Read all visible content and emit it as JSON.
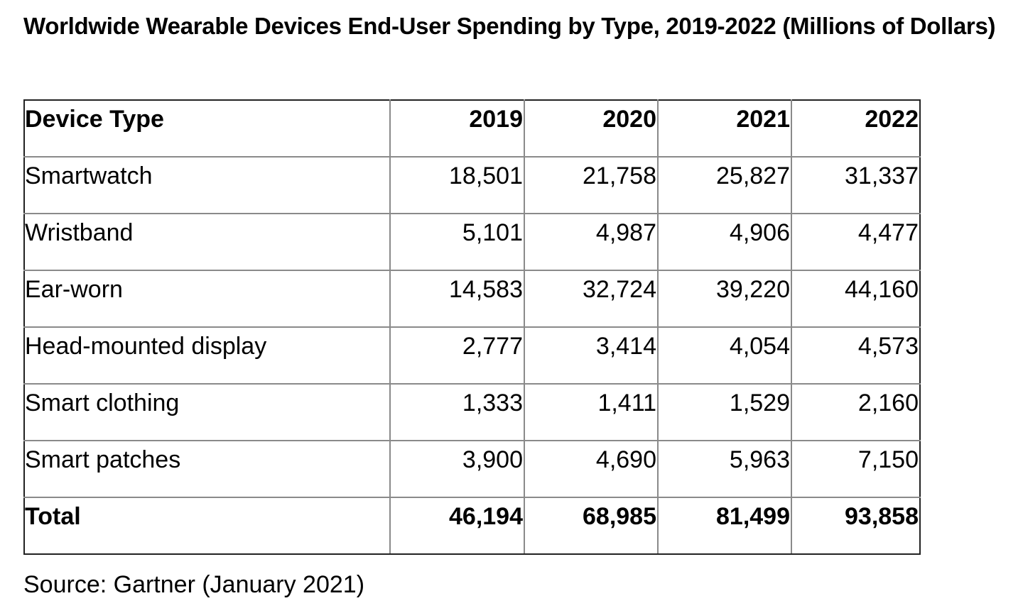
{
  "title": "Worldwide Wearable Devices End-User Spending by Type, 2019-2022 (Millions of Dollars)",
  "table": {
    "headers": [
      "Device Type",
      "2019",
      "2020",
      "2021",
      "2022"
    ],
    "rows": [
      [
        "Smartwatch",
        "18,501",
        "21,758",
        "25,827",
        "31,337"
      ],
      [
        "Wristband",
        "5,101",
        "4,987",
        "4,906",
        "4,477"
      ],
      [
        "Ear-worn",
        "14,583",
        "32,724",
        "39,220",
        "44,160"
      ],
      [
        "Head-mounted display",
        "2,777",
        "3,414",
        "4,054",
        "4,573"
      ],
      [
        "Smart clothing",
        "1,333",
        "1,411",
        "1,529",
        "2,160"
      ],
      [
        "Smart patches",
        "3,900",
        "4,690",
        "5,963",
        "7,150"
      ]
    ],
    "total": [
      "Total",
      "46,194",
      "68,985",
      "81,499",
      "93,858"
    ]
  },
  "source": "Source: Gartner (January 2021)"
}
